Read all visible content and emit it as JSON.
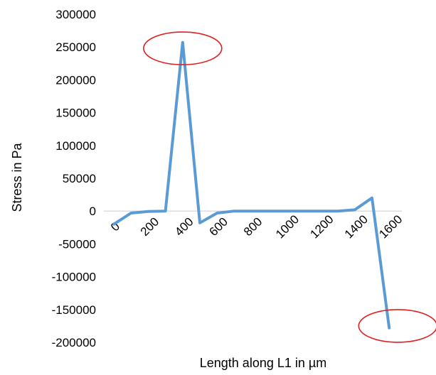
{
  "chart_data": {
    "type": "line",
    "title": "",
    "xlabel": "Length along L1 in µm",
    "ylabel": "Stress in Pa",
    "ylim": [
      -200000,
      300000
    ],
    "yticks": [
      300000,
      250000,
      200000,
      150000,
      100000,
      50000,
      0,
      -50000,
      -100000,
      -150000,
      -200000
    ],
    "xtick_labels": [
      "0",
      "200",
      "400",
      "600",
      "800",
      "1000",
      "1200",
      "1400",
      "1600"
    ],
    "grid": false,
    "legend": "none",
    "series": [
      {
        "color": "#5b9bd5",
        "x": [
          0,
          100,
          200,
          300,
          400,
          500,
          600,
          700,
          800,
          900,
          1000,
          1100,
          1200,
          1300,
          1400,
          1500,
          1600
        ],
        "y": [
          -20000,
          -3000,
          -500,
          0,
          257000,
          -18000,
          -3000,
          0,
          0,
          0,
          0,
          0,
          0,
          0,
          2000,
          20000,
          -178000
        ]
      }
    ],
    "annotations": [
      {
        "shape": "ellipse",
        "color": "#e02020",
        "x": 400,
        "y": 248000
      },
      {
        "shape": "ellipse",
        "color": "#e02020",
        "x": 1650,
        "y": -175000
      }
    ]
  }
}
